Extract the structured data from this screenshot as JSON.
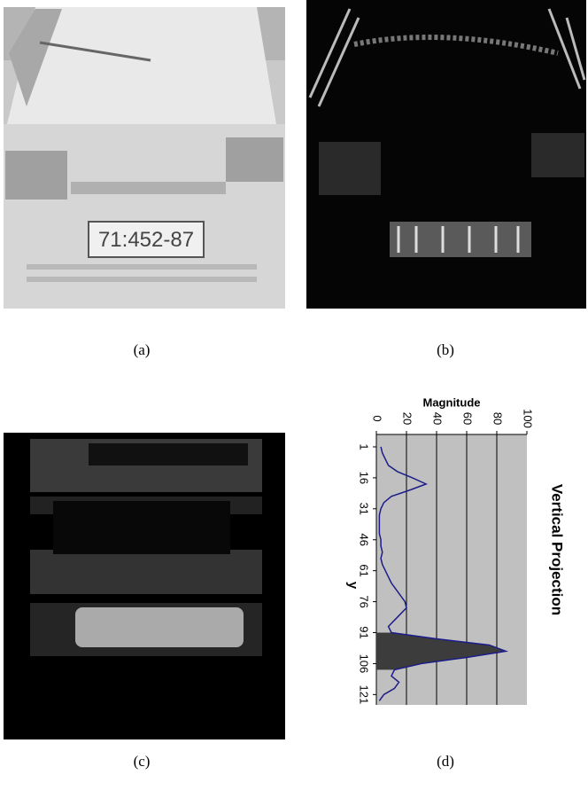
{
  "panels": [
    {
      "caption": "(a)",
      "plate_text": "71:452-87"
    },
    {
      "caption": "(b)"
    },
    {
      "caption": "(c)"
    },
    {
      "caption": "(d)"
    }
  ],
  "chart_data": {
    "type": "line",
    "title": "Vertical Projection",
    "xlabel": "Magnitude",
    "ylabel": "y",
    "xlim": [
      0,
      100
    ],
    "xticks": [
      0,
      20,
      40,
      60,
      80,
      100
    ],
    "ylim": [
      -5,
      126
    ],
    "yticks": [
      1,
      16,
      31,
      46,
      61,
      76,
      91,
      106,
      121
    ],
    "grid": true,
    "fill_color": "#3c3c3c",
    "rows": [
      1,
      4,
      7,
      10,
      13,
      16,
      19,
      22,
      25,
      28,
      31,
      34,
      37,
      40,
      43,
      46,
      49,
      52,
      55,
      58,
      61,
      64,
      67,
      70,
      73,
      76,
      79,
      82,
      85,
      88,
      91,
      94,
      97,
      100,
      103,
      106,
      109,
      112,
      115,
      118,
      121,
      124
    ],
    "series": [
      {
        "color": "#1c1c8a",
        "values": [
          3,
          4,
          6,
          8,
          14,
          24,
          33,
          22,
          10,
          5,
          3,
          2,
          2,
          2,
          2,
          3,
          3,
          4,
          3,
          4,
          6,
          8,
          10,
          13,
          16,
          19,
          20,
          16,
          12,
          8,
          10,
          40,
          75,
          86,
          60,
          30,
          12,
          10,
          15,
          12,
          5,
          2
        ]
      }
    ]
  }
}
